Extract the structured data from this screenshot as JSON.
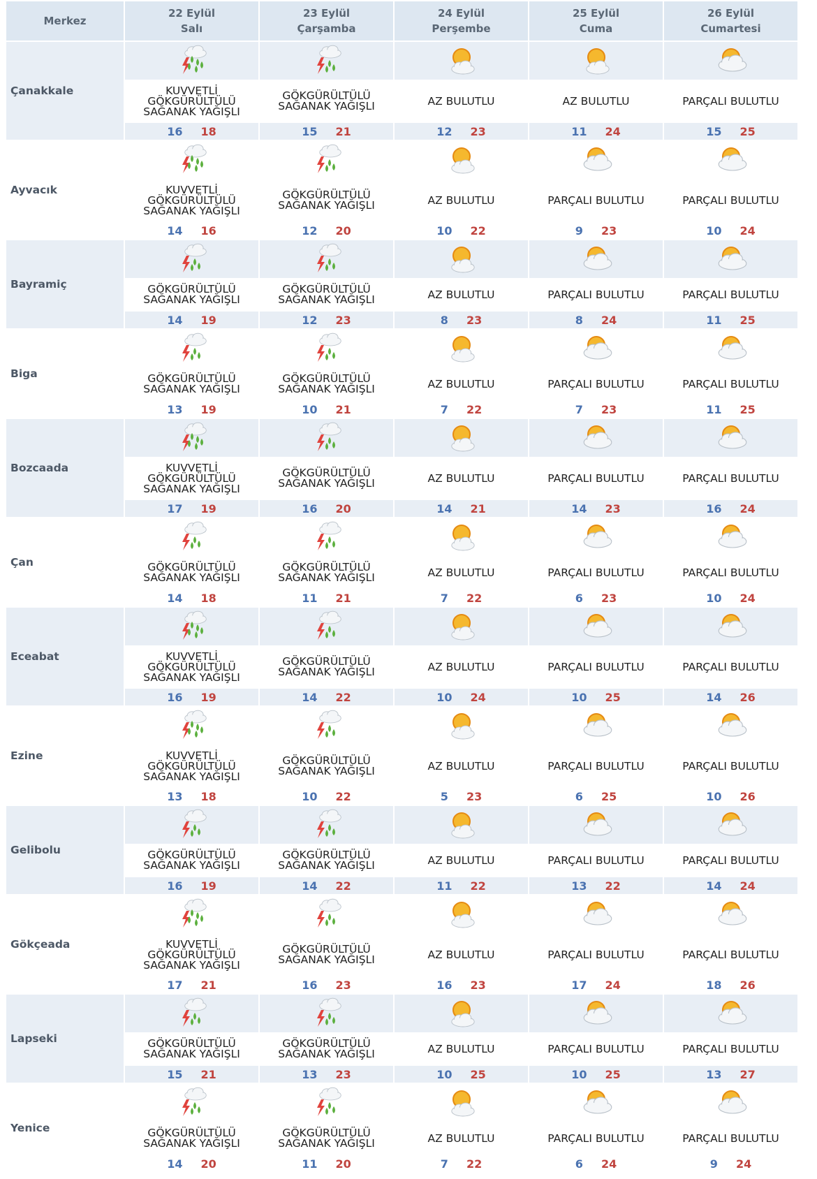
{
  "header": {
    "first": "Merkez",
    "days": [
      {
        "date": "22 Eylül",
        "weekday": "Salı"
      },
      {
        "date": "23 Eylül",
        "weekday": "Çarşamba"
      },
      {
        "date": "24 Eylül",
        "weekday": "Perşembe"
      },
      {
        "date": "25 Eylül",
        "weekday": "Cuma"
      },
      {
        "date": "26 Eylül",
        "weekday": "Cumartesi"
      }
    ]
  },
  "rows": [
    {
      "city": "Çanakkale",
      "days": [
        {
          "condition": [
            "KUVVETLİ",
            "GÖKGÜRÜLTÜLÜ",
            "SAĞANAK YAĞIŞLI"
          ],
          "low": 16,
          "high": 18
        },
        {
          "condition": [
            "GÖKGÜRÜLTÜLÜ",
            "SAĞANAK YAĞIŞLI"
          ],
          "low": 15,
          "high": 21
        },
        {
          "condition": [
            "AZ BULUTLU"
          ],
          "low": 12,
          "high": 23
        },
        {
          "condition": [
            "AZ BULUTLU"
          ],
          "low": 11,
          "high": 24
        },
        {
          "condition": [
            "PARÇALI BULUTLU"
          ],
          "low": 15,
          "high": 25
        }
      ]
    },
    {
      "city": "Ayvacık",
      "days": [
        {
          "condition": [
            "KUVVETLİ",
            "GÖKGÜRÜLTÜLÜ",
            "SAĞANAK YAĞIŞLI"
          ],
          "low": 14,
          "high": 16
        },
        {
          "condition": [
            "GÖKGÜRÜLTÜLÜ",
            "SAĞANAK YAĞIŞLI"
          ],
          "low": 12,
          "high": 20
        },
        {
          "condition": [
            "AZ BULUTLU"
          ],
          "low": 10,
          "high": 22
        },
        {
          "condition": [
            "PARÇALI BULUTLU"
          ],
          "low": 9,
          "high": 23
        },
        {
          "condition": [
            "PARÇALI BULUTLU"
          ],
          "low": 10,
          "high": 24
        }
      ]
    },
    {
      "city": "Bayramiç",
      "days": [
        {
          "condition": [
            "GÖKGÜRÜLTÜLÜ",
            "SAĞANAK YAĞIŞLI"
          ],
          "low": 14,
          "high": 19
        },
        {
          "condition": [
            "GÖKGÜRÜLTÜLÜ",
            "SAĞANAK YAĞIŞLI"
          ],
          "low": 12,
          "high": 23
        },
        {
          "condition": [
            "AZ BULUTLU"
          ],
          "low": 8,
          "high": 23
        },
        {
          "condition": [
            "PARÇALI BULUTLU"
          ],
          "low": 8,
          "high": 24
        },
        {
          "condition": [
            "PARÇALI BULUTLU"
          ],
          "low": 11,
          "high": 25
        }
      ]
    },
    {
      "city": "Biga",
      "days": [
        {
          "condition": [
            "GÖKGÜRÜLTÜLÜ",
            "SAĞANAK YAĞIŞLI"
          ],
          "low": 13,
          "high": 19
        },
        {
          "condition": [
            "GÖKGÜRÜLTÜLÜ",
            "SAĞANAK YAĞIŞLI"
          ],
          "low": 10,
          "high": 21
        },
        {
          "condition": [
            "AZ BULUTLU"
          ],
          "low": 7,
          "high": 22
        },
        {
          "condition": [
            "PARÇALI BULUTLU"
          ],
          "low": 7,
          "high": 23
        },
        {
          "condition": [
            "PARÇALI BULUTLU"
          ],
          "low": 11,
          "high": 25
        }
      ]
    },
    {
      "city": "Bozcaada",
      "days": [
        {
          "condition": [
            "KUVVETLİ",
            "GÖKGÜRÜLTÜLÜ",
            "SAĞANAK YAĞIŞLI"
          ],
          "low": 17,
          "high": 19
        },
        {
          "condition": [
            "GÖKGÜRÜLTÜLÜ",
            "SAĞANAK YAĞIŞLI"
          ],
          "low": 16,
          "high": 20
        },
        {
          "condition": [
            "AZ BULUTLU"
          ],
          "low": 14,
          "high": 21
        },
        {
          "condition": [
            "PARÇALI BULUTLU"
          ],
          "low": 14,
          "high": 23
        },
        {
          "condition": [
            "PARÇALI BULUTLU"
          ],
          "low": 16,
          "high": 24
        }
      ]
    },
    {
      "city": "Çan",
      "days": [
        {
          "condition": [
            "GÖKGÜRÜLTÜLÜ",
            "SAĞANAK YAĞIŞLI"
          ],
          "low": 14,
          "high": 18
        },
        {
          "condition": [
            "GÖKGÜRÜLTÜLÜ",
            "SAĞANAK YAĞIŞLI"
          ],
          "low": 11,
          "high": 21
        },
        {
          "condition": [
            "AZ BULUTLU"
          ],
          "low": 7,
          "high": 22
        },
        {
          "condition": [
            "PARÇALI BULUTLU"
          ],
          "low": 6,
          "high": 23
        },
        {
          "condition": [
            "PARÇALI BULUTLU"
          ],
          "low": 10,
          "high": 24
        }
      ]
    },
    {
      "city": "Eceabat",
      "days": [
        {
          "condition": [
            "KUVVETLİ",
            "GÖKGÜRÜLTÜLÜ",
            "SAĞANAK YAĞIŞLI"
          ],
          "low": 16,
          "high": 19
        },
        {
          "condition": [
            "GÖKGÜRÜLTÜLÜ",
            "SAĞANAK YAĞIŞLI"
          ],
          "low": 14,
          "high": 22
        },
        {
          "condition": [
            "AZ BULUTLU"
          ],
          "low": 10,
          "high": 24
        },
        {
          "condition": [
            "PARÇALI BULUTLU"
          ],
          "low": 10,
          "high": 25
        },
        {
          "condition": [
            "PARÇALI BULUTLU"
          ],
          "low": 14,
          "high": 26
        }
      ]
    },
    {
      "city": "Ezine",
      "days": [
        {
          "condition": [
            "KUVVETLİ",
            "GÖKGÜRÜLTÜLÜ",
            "SAĞANAK YAĞIŞLI"
          ],
          "low": 13,
          "high": 18
        },
        {
          "condition": [
            "GÖKGÜRÜLTÜLÜ",
            "SAĞANAK YAĞIŞLI"
          ],
          "low": 10,
          "high": 22
        },
        {
          "condition": [
            "AZ BULUTLU"
          ],
          "low": 5,
          "high": 23
        },
        {
          "condition": [
            "PARÇALI BULUTLU"
          ],
          "low": 6,
          "high": 25
        },
        {
          "condition": [
            "PARÇALI BULUTLU"
          ],
          "low": 10,
          "high": 26
        }
      ]
    },
    {
      "city": "Gelibolu",
      "days": [
        {
          "condition": [
            "GÖKGÜRÜLTÜLÜ",
            "SAĞANAK YAĞIŞLI"
          ],
          "low": 16,
          "high": 19
        },
        {
          "condition": [
            "GÖKGÜRÜLTÜLÜ",
            "SAĞANAK YAĞIŞLI"
          ],
          "low": 14,
          "high": 22
        },
        {
          "condition": [
            "AZ BULUTLU"
          ],
          "low": 11,
          "high": 22
        },
        {
          "condition": [
            "PARÇALI BULUTLU"
          ],
          "low": 13,
          "high": 22
        },
        {
          "condition": [
            "PARÇALI BULUTLU"
          ],
          "low": 14,
          "high": 24
        }
      ]
    },
    {
      "city": "Gökçeada",
      "days": [
        {
          "condition": [
            "KUVVETLİ",
            "GÖKGÜRÜLTÜLÜ",
            "SAĞANAK YAĞIŞLI"
          ],
          "low": 17,
          "high": 21
        },
        {
          "condition": [
            "GÖKGÜRÜLTÜLÜ",
            "SAĞANAK YAĞIŞLI"
          ],
          "low": 16,
          "high": 23
        },
        {
          "condition": [
            "AZ BULUTLU"
          ],
          "low": 16,
          "high": 23
        },
        {
          "condition": [
            "PARÇALI BULUTLU"
          ],
          "low": 17,
          "high": 24
        },
        {
          "condition": [
            "PARÇALI BULUTLU"
          ],
          "low": 18,
          "high": 26
        }
      ]
    },
    {
      "city": "Lapseki",
      "days": [
        {
          "condition": [
            "GÖKGÜRÜLTÜLÜ",
            "SAĞANAK YAĞIŞLI"
          ],
          "low": 15,
          "high": 21
        },
        {
          "condition": [
            "GÖKGÜRÜLTÜLÜ",
            "SAĞANAK YAĞIŞLI"
          ],
          "low": 13,
          "high": 23
        },
        {
          "condition": [
            "AZ BULUTLU"
          ],
          "low": 10,
          "high": 25
        },
        {
          "condition": [
            "PARÇALI BULUTLU"
          ],
          "low": 10,
          "high": 25
        },
        {
          "condition": [
            "PARÇALI BULUTLU"
          ],
          "low": 13,
          "high": 27
        }
      ]
    },
    {
      "city": "Yenice",
      "days": [
        {
          "condition": [
            "GÖKGÜRÜLTÜLÜ",
            "SAĞANAK YAĞIŞLI"
          ],
          "low": 14,
          "high": 20
        },
        {
          "condition": [
            "GÖKGÜRÜLTÜLÜ",
            "SAĞANAK YAĞIŞLI"
          ],
          "low": 11,
          "high": 20
        },
        {
          "condition": [
            "AZ BULUTLU"
          ],
          "low": 7,
          "high": 22
        },
        {
          "condition": [
            "PARÇALI BULUTLU"
          ],
          "low": 6,
          "high": 24
        },
        {
          "condition": [
            "PARÇALI BULUTLU"
          ],
          "low": 9,
          "high": 24
        }
      ]
    }
  ]
}
